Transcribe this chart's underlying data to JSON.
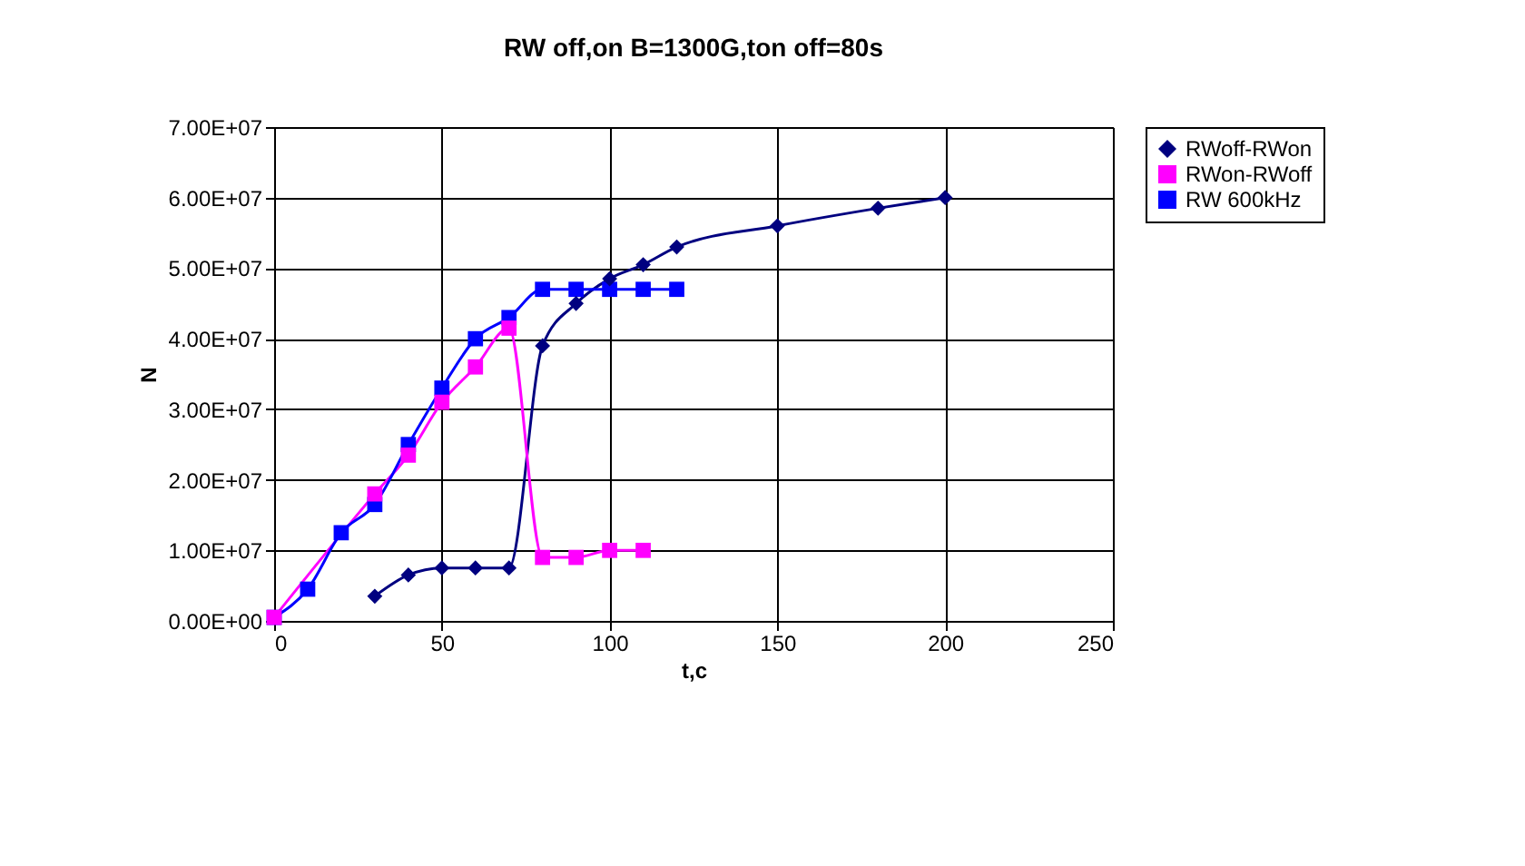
{
  "chart_data": {
    "type": "line",
    "title": "RW off,on B=1300G,ton off=80s",
    "xlabel": "t,c",
    "ylabel": "N",
    "xlim": [
      0,
      250
    ],
    "xticks": [
      0,
      50,
      100,
      150,
      200,
      250
    ],
    "ylim": [
      0,
      70000000
    ],
    "yticks": [
      {
        "value": 0,
        "label": "0.00E+00"
      },
      {
        "value": 10000000,
        "label": "1.00E+07"
      },
      {
        "value": 20000000,
        "label": "2.00E+07"
      },
      {
        "value": 30000000,
        "label": "3.00E+07"
      },
      {
        "value": 40000000,
        "label": "4.00E+07"
      },
      {
        "value": 50000000,
        "label": "5.00E+07"
      },
      {
        "value": 60000000,
        "label": "6.00E+07"
      },
      {
        "value": 70000000,
        "label": "7.00E+07"
      }
    ],
    "grid": true,
    "legend": "right",
    "series": [
      {
        "name": "RWoff-RWon",
        "color": "#000080",
        "marker": "diamond",
        "x": [
          30,
          40,
          50,
          60,
          70,
          80,
          90,
          100,
          110,
          120,
          150,
          180,
          200
        ],
        "values": [
          3500000,
          6500000,
          7500000,
          7500000,
          7500000,
          39000000,
          45000000,
          48500000,
          50500000,
          53000000,
          56000000,
          58500000,
          60000000
        ]
      },
      {
        "name": "RWon-RWoff",
        "color": "#ff00ff",
        "marker": "square",
        "x": [
          0,
          30,
          40,
          50,
          60,
          70,
          80,
          90,
          100,
          110
        ],
        "values": [
          500000,
          18000000,
          23500000,
          31000000,
          36000000,
          41500000,
          9000000,
          9000000,
          10000000,
          10000000
        ]
      },
      {
        "name": "RW 600kHz",
        "color": "#0000ff",
        "marker": "square",
        "x": [
          0,
          10,
          20,
          30,
          40,
          50,
          60,
          70,
          80,
          90,
          100,
          110,
          120
        ],
        "values": [
          500000,
          4500000,
          12500000,
          16500000,
          25000000,
          33000000,
          40000000,
          43000000,
          47000000,
          47000000,
          47000000,
          47000000,
          47000000
        ]
      }
    ]
  }
}
